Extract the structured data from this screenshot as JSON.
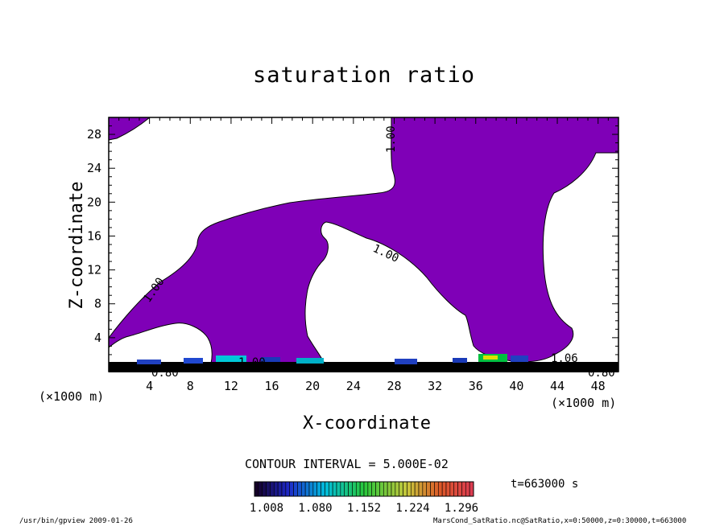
{
  "chart_data": {
    "type": "contour",
    "title": "saturation ratio",
    "xlabel": "X-coordinate",
    "ylabel": "Z-coordinate",
    "x_unit_label": "(×1000 m)",
    "xlim": [
      0,
      50
    ],
    "ylim": [
      0,
      30
    ],
    "x_ticks": [
      4,
      8,
      12,
      16,
      20,
      24,
      28,
      32,
      36,
      40,
      44,
      48
    ],
    "y_ticks": [
      4,
      8,
      12,
      16,
      20,
      24,
      28
    ],
    "contour_interval_text": "CONTOUR INTERVAL = 5.000E-02",
    "contour_labels": [
      "1.00",
      "1.00",
      "1.00",
      "1.00",
      "1.06",
      "0.80",
      "0.80"
    ],
    "colorbar": {
      "ticks": [
        "1.008",
        "1.080",
        "1.152",
        "1.224",
        "1.296"
      ],
      "min": 1.008,
      "max": 1.296
    },
    "time_text": "t=663000 s",
    "fill_color": "#7f00b7",
    "grid": false
  },
  "footer": {
    "left": "/usr/bin/gpview   2009-01-26",
    "right": "MarsCond_SatRatio.nc@SatRatio,x=0:50000,z=0:30000,t=663000"
  }
}
